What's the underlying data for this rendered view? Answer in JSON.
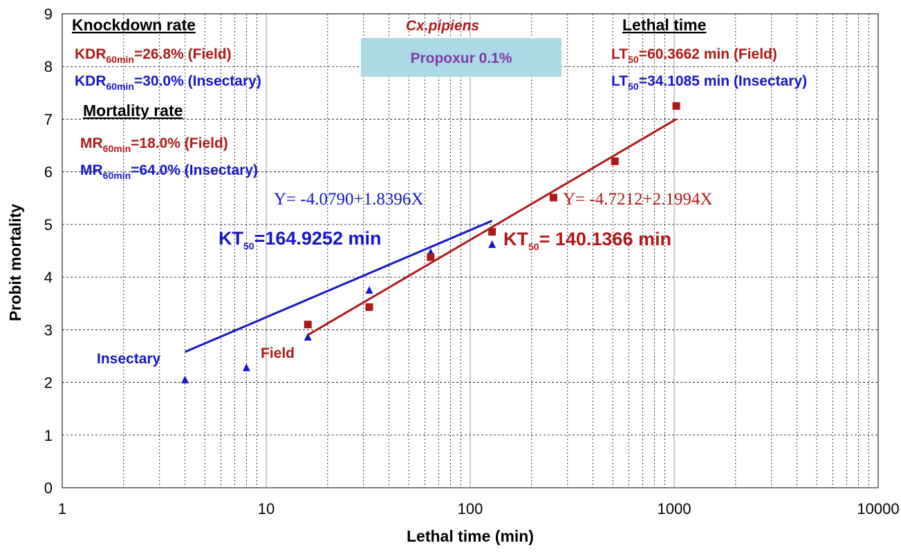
{
  "chart_data": {
    "type": "scatter",
    "xlabel": "Lethal time (min)",
    "ylabel": "Probit mortality",
    "xscale": "log",
    "xlim": [
      1,
      10000
    ],
    "ylim": [
      0,
      9
    ],
    "x_ticks": [
      "1",
      "10",
      "100",
      "1000",
      "10000"
    ],
    "y_ticks": [
      "0",
      "1",
      "2",
      "3",
      "4",
      "5",
      "6",
      "7",
      "8",
      "9"
    ],
    "grid": true,
    "series": [
      {
        "name": "Insectary",
        "color": "#1515c8",
        "marker": "triangle",
        "x": [
          4,
          8,
          16,
          32,
          64,
          128
        ],
        "y": [
          2.05,
          2.28,
          2.86,
          3.75,
          4.47,
          4.62
        ],
        "fit_x": [
          4,
          128
        ],
        "fit_y": [
          2.58,
          5.07
        ],
        "equation": "Y= -4.0790+1.8396X"
      },
      {
        "name": "Field",
        "color": "#b01818",
        "marker": "square",
        "x": [
          16,
          32,
          64,
          128,
          256,
          512,
          1024
        ],
        "y": [
          3.1,
          3.43,
          4.38,
          4.86,
          5.51,
          6.2,
          7.25
        ],
        "fit_x": [
          16,
          1024
        ],
        "fit_y": [
          2.9,
          7.0
        ],
        "equation": "Y= -4.7212+2.1994X"
      }
    ],
    "annotations": {
      "species": "Cx.pipiens",
      "treatment": "Propoxur 0.1%",
      "knockdown_heading": "Knockdown rate",
      "mortality_heading": "Mortality rate",
      "lethal_heading": "Lethal time",
      "kdr_field": {
        "prefix": "KDR",
        "sub": "60min",
        "rest": "=26.8% (Field)"
      },
      "kdr_insectary": {
        "prefix": "KDR",
        "sub": "60min",
        "rest": "=30.0% (Insectary)"
      },
      "mr_field": {
        "prefix": "MR",
        "sub": "60min",
        "rest": "=18.0% (Field)"
      },
      "mr_insectary": {
        "prefix": "MR",
        "sub": "60min",
        "rest": "=64.0% (Insectary)"
      },
      "lt_field": {
        "prefix": "LT",
        "sub": "50",
        "rest": "=60.3662 min (Field)"
      },
      "lt_insectary": {
        "prefix": "LT",
        "sub": "50",
        "rest": "=34.1085 min (Insectary)"
      },
      "kt_insectary": {
        "prefix": "KT",
        "sub": "50",
        "rest": "=164.9252 min"
      },
      "kt_field": {
        "prefix": "KT",
        "sub": "50",
        "rest": "= 140.1366 min"
      },
      "insectary_label": "Insectary",
      "field_label": "Field"
    }
  }
}
